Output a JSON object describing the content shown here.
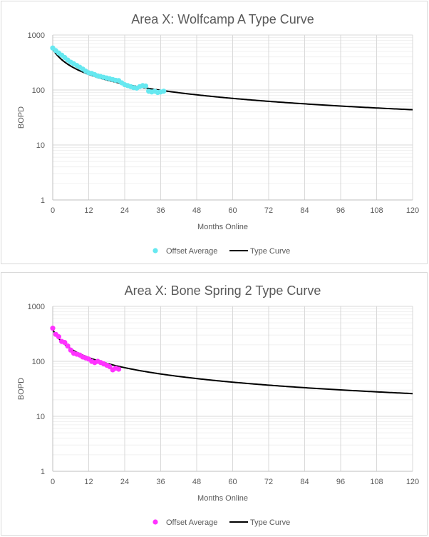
{
  "chart_data": [
    {
      "type": "scatter",
      "title": "Area X: Wolfcamp A Type Curve",
      "xlabel": "Months Online",
      "ylabel": "BOPD",
      "xlim": [
        0,
        120
      ],
      "ylim": [
        1,
        1000
      ],
      "yscale": "log",
      "xticks": [
        "0",
        "12",
        "24",
        "36",
        "48",
        "60",
        "72",
        "84",
        "96",
        "108",
        "120"
      ],
      "yticks": [
        "1",
        "10",
        "100",
        "1000"
      ],
      "grid": true,
      "legend": "bottom",
      "series": [
        {
          "name": "Offset Average",
          "kind": "scatter",
          "color": "#66e8f0",
          "x": [
            0,
            1,
            2,
            3,
            4,
            5,
            6,
            7,
            8,
            9,
            10,
            11,
            12,
            13,
            14,
            15,
            16,
            17,
            18,
            19,
            20,
            21,
            22,
            23,
            24,
            25,
            26,
            27,
            28,
            29,
            30,
            31,
            32,
            33,
            34,
            35,
            36,
            37
          ],
          "y": [
            580,
            520,
            470,
            430,
            390,
            350,
            320,
            300,
            280,
            260,
            240,
            220,
            205,
            200,
            190,
            180,
            175,
            170,
            165,
            160,
            155,
            150,
            148,
            135,
            125,
            120,
            115,
            110,
            108,
            115,
            120,
            118,
            95,
            92,
            95,
            90,
            92,
            95
          ]
        },
        {
          "name": "Type Curve",
          "kind": "line",
          "color": "#000000",
          "qi": 550,
          "b": 1.4,
          "Di": 0.2,
          "x_range": [
            0,
            120
          ]
        }
      ]
    },
    {
      "type": "scatter",
      "title": "Area X: Bone Spring 2 Type Curve",
      "xlabel": "Months Online",
      "ylabel": "BOPD",
      "xlim": [
        0,
        120
      ],
      "ylim": [
        1,
        1000
      ],
      "yscale": "log",
      "xticks": [
        "0",
        "12",
        "24",
        "36",
        "48",
        "60",
        "72",
        "84",
        "96",
        "108",
        "120"
      ],
      "yticks": [
        "1",
        "10",
        "100",
        "1000"
      ],
      "grid": true,
      "legend": "bottom",
      "series": [
        {
          "name": "Offset Average",
          "kind": "scatter",
          "color": "#ff33ff",
          "x": [
            0,
            1,
            2,
            3,
            4,
            5,
            6,
            7,
            8,
            9,
            10,
            11,
            12,
            13,
            14,
            15,
            16,
            17,
            18,
            19,
            20,
            21,
            22
          ],
          "y": [
            400,
            310,
            280,
            230,
            220,
            190,
            160,
            140,
            135,
            130,
            120,
            115,
            110,
            100,
            95,
            100,
            95,
            90,
            85,
            80,
            70,
            75,
            72
          ]
        },
        {
          "name": "Type Curve",
          "kind": "line",
          "color": "#000000",
          "qi": 380,
          "b": 1.4,
          "Di": 0.25,
          "x_range": [
            0,
            120
          ]
        }
      ]
    }
  ]
}
